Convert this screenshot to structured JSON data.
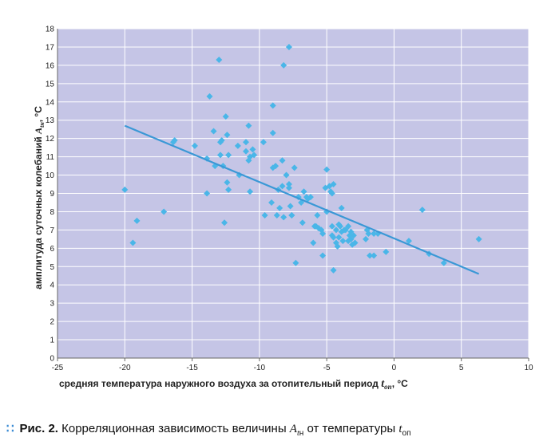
{
  "caption": {
    "figure_label": "Рис. 2.",
    "text_before": " Корреляционная зависимость величины ",
    "var1": "A",
    "var1_sub_t": "t",
    "var1_sub_n": "н",
    "text_middle": " от температуры ",
    "var2": "t",
    "var2_sub": "оп"
  },
  "chart_data": {
    "type": "scatter",
    "xlabel": "средняя температура наружного воздуха за отопительный период t_оп, °С",
    "ylabel": "амплитуда суточных колебаний A_tн, °С",
    "xlabel_text": "средняя температура наружного воздуха за отопительный период",
    "xlabel_var": "t",
    "xlabel_sub": "оп",
    "xlabel_unit": ", °С",
    "ylabel_text": "амплитуда суточных колебаний",
    "ylabel_var": "A",
    "ylabel_sub": "tн",
    "ylabel_unit": ", °С",
    "xlim": [
      -25,
      10
    ],
    "ylim": [
      0,
      18
    ],
    "x_ticks": [
      -25,
      -20,
      -15,
      -10,
      -5,
      0,
      5,
      10
    ],
    "y_ticks": [
      0,
      1,
      2,
      3,
      4,
      5,
      6,
      7,
      8,
      9,
      10,
      11,
      12,
      13,
      14,
      15,
      16,
      17,
      18
    ],
    "grid": true,
    "colors": {
      "plot_background": "#c5c5e6",
      "grid": "#ffffff",
      "points": "#4ab6e8",
      "trend_line": "#3a98d6"
    },
    "series": [
      {
        "marker": "diamond",
        "points": [
          [
            -20.0,
            9.2
          ],
          [
            -19.4,
            6.3
          ],
          [
            -19.1,
            7.5
          ],
          [
            -17.1,
            8.0
          ],
          [
            -16.4,
            11.8
          ],
          [
            -16.3,
            11.9
          ],
          [
            -14.8,
            11.6
          ],
          [
            -13.9,
            10.9
          ],
          [
            -13.9,
            9.0
          ],
          [
            -13.7,
            14.3
          ],
          [
            -13.4,
            12.4
          ],
          [
            -13.3,
            10.5
          ],
          [
            -13.0,
            16.3
          ],
          [
            -12.9,
            11.8
          ],
          [
            -12.9,
            11.1
          ],
          [
            -12.8,
            11.9
          ],
          [
            -12.7,
            10.5
          ],
          [
            -12.6,
            7.4
          ],
          [
            -12.5,
            13.2
          ],
          [
            -12.4,
            12.2
          ],
          [
            -12.4,
            9.6
          ],
          [
            -12.3,
            11.1
          ],
          [
            -12.3,
            9.2
          ],
          [
            -11.6,
            11.6
          ],
          [
            -11.5,
            10.0
          ],
          [
            -11.0,
            11.8
          ],
          [
            -11.0,
            11.3
          ],
          [
            -10.8,
            12.7
          ],
          [
            -10.8,
            10.8
          ],
          [
            -10.7,
            11.0
          ],
          [
            -10.7,
            9.1
          ],
          [
            -10.5,
            11.4
          ],
          [
            -10.4,
            11.1
          ],
          [
            -9.7,
            11.8
          ],
          [
            -9.6,
            7.8
          ],
          [
            -9.1,
            8.5
          ],
          [
            -9.0,
            13.8
          ],
          [
            -9.0,
            12.3
          ],
          [
            -9.0,
            10.4
          ],
          [
            -8.8,
            10.5
          ],
          [
            -8.7,
            7.8
          ],
          [
            -8.6,
            9.2
          ],
          [
            -8.5,
            8.2
          ],
          [
            -8.3,
            10.8
          ],
          [
            -8.3,
            9.4
          ],
          [
            -8.2,
            16.0
          ],
          [
            -8.2,
            7.7
          ],
          [
            -8.0,
            10.0
          ],
          [
            -7.8,
            17.0
          ],
          [
            -7.8,
            9.5
          ],
          [
            -7.8,
            9.3
          ],
          [
            -7.7,
            8.3
          ],
          [
            -7.6,
            7.8
          ],
          [
            -7.6,
            7.8
          ],
          [
            -7.4,
            10.4
          ],
          [
            -7.3,
            5.2
          ],
          [
            -7.1,
            8.8
          ],
          [
            -6.9,
            8.5
          ],
          [
            -6.8,
            7.4
          ],
          [
            -6.7,
            9.1
          ],
          [
            -6.5,
            8.8
          ],
          [
            -6.4,
            8.7
          ],
          [
            -6.2,
            8.8
          ],
          [
            -6.0,
            6.3
          ],
          [
            -5.9,
            7.2
          ],
          [
            -5.8,
            7.2
          ],
          [
            -5.7,
            7.8
          ],
          [
            -5.6,
            7.1
          ],
          [
            -5.4,
            7.0
          ],
          [
            -5.3,
            6.8
          ],
          [
            -5.3,
            5.6
          ],
          [
            -5.1,
            9.3
          ],
          [
            -5.0,
            10.3
          ],
          [
            -5.0,
            8.0
          ],
          [
            -4.8,
            9.4
          ],
          [
            -4.7,
            9.1
          ],
          [
            -4.6,
            9.0
          ],
          [
            -4.6,
            7.2
          ],
          [
            -4.6,
            6.7
          ],
          [
            -4.5,
            9.5
          ],
          [
            -4.5,
            6.6
          ],
          [
            -4.5,
            4.8
          ],
          [
            -4.3,
            7.0
          ],
          [
            -4.3,
            6.3
          ],
          [
            -4.2,
            6.1
          ],
          [
            -4.1,
            7.3
          ],
          [
            -4.1,
            6.6
          ],
          [
            -4.0,
            7.2
          ],
          [
            -3.9,
            8.2
          ],
          [
            -3.9,
            6.9
          ],
          [
            -3.8,
            6.4
          ],
          [
            -3.7,
            7.0
          ],
          [
            -3.6,
            7.0
          ],
          [
            -3.4,
            7.2
          ],
          [
            -3.4,
            6.4
          ],
          [
            -3.3,
            6.7
          ],
          [
            -3.2,
            6.9
          ],
          [
            -3.2,
            6.5
          ],
          [
            -3.1,
            6.2
          ],
          [
            -3.0,
            6.7
          ],
          [
            -2.9,
            6.3
          ],
          [
            -2.1,
            6.5
          ],
          [
            -2.0,
            7.0
          ],
          [
            -1.9,
            6.8
          ],
          [
            -1.8,
            5.6
          ],
          [
            -1.5,
            5.6
          ],
          [
            -1.5,
            6.8
          ],
          [
            -1.2,
            6.8
          ],
          [
            -0.6,
            5.8
          ],
          [
            1.1,
            6.4
          ],
          [
            2.1,
            8.1
          ],
          [
            2.6,
            5.7
          ],
          [
            3.7,
            5.2
          ],
          [
            6.3,
            6.5
          ]
        ]
      }
    ],
    "trend_line": {
      "x": [
        -20,
        6.3
      ],
      "y": [
        12.7,
        4.6
      ]
    }
  }
}
